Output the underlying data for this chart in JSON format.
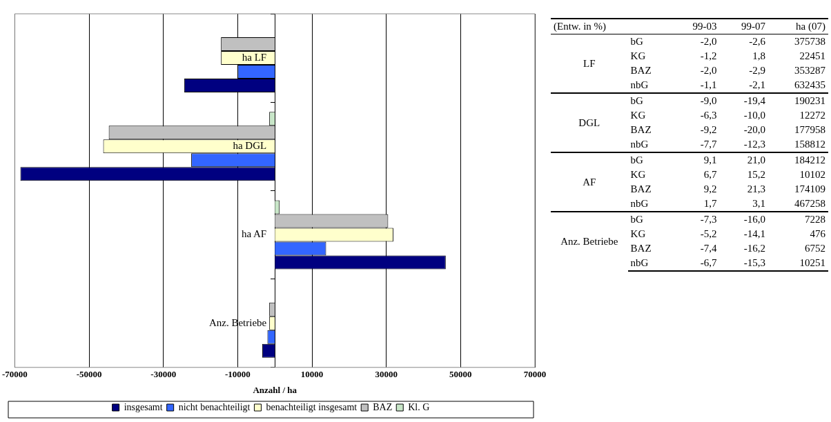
{
  "chart_data": [
    {
      "type": "bar",
      "orientation": "horizontal",
      "xlabel": "Anzahl / ha",
      "categories": [
        "ha LF",
        "ha DGL",
        "ha AF",
        "Anz. Betriebe"
      ],
      "series": [
        {
          "name": "insgesamt",
          "color": "#000080",
          "values": [
            -24400,
            -68500,
            46000,
            -3400
          ]
        },
        {
          "name": "nicht benachteiligt",
          "color": "#3366ff",
          "values": [
            -10000,
            -22500,
            13800,
            -2000
          ]
        },
        {
          "name": "benachteiligt insgesamt",
          "color": "#ffffcc",
          "values": [
            -14500,
            -46200,
            31900,
            -1500
          ]
        },
        {
          "name": "BAZ",
          "color": "#c0c0c0",
          "values": [
            -14500,
            -44700,
            30500,
            -1500
          ]
        },
        {
          "name": "Kl. G",
          "color": "#c8e6c8",
          "values": [
            null,
            -1500,
            1300,
            null
          ]
        }
      ],
      "xlim": [
        -70000,
        70000
      ],
      "xticks": [
        -70000,
        -50000,
        -30000,
        -10000,
        10000,
        30000,
        50000,
        70000
      ],
      "grid": "x",
      "legend": "bottom"
    },
    {
      "type": "heatmap",
      "categories": [
        "99-03",
        "99-07",
        "ha (07)"
      ],
      "y_categories": [
        "bG",
        "KG",
        "BAZ",
        "nbG",
        "bG",
        "KG",
        "BAZ",
        "nbG",
        "bG",
        "KG",
        "BAZ",
        "nbG",
        "bG",
        "KG",
        "BAZ",
        "nbG"
      ],
      "cells": [
        [
          -2.0,
          -2.6,
          375738
        ],
        [
          -1.2,
          1.8,
          22451
        ],
        [
          -2.0,
          -2.9,
          353287
        ],
        [
          -1.1,
          -2.1,
          632435
        ],
        [
          -9.0,
          -19.4,
          190231
        ],
        [
          -6.3,
          -10.0,
          12272
        ],
        [
          -9.2,
          -20.0,
          177958
        ],
        [
          -7.7,
          -12.3,
          158812
        ],
        [
          9.1,
          21.0,
          184212
        ],
        [
          6.7,
          15.2,
          10102
        ],
        [
          9.2,
          21.3,
          174109
        ],
        [
          1.7,
          3.1,
          467258
        ],
        [
          -7.3,
          -16.0,
          7228
        ],
        [
          -5.2,
          -14.1,
          476
        ],
        [
          -7.4,
          -16.2,
          6752
        ],
        [
          -6.7,
          -15.3,
          10251
        ]
      ],
      "cell_labels": [
        [
          "-2,0",
          "-2,6",
          "375738"
        ],
        [
          "-1,2",
          "1,8",
          "22451"
        ],
        [
          "-2,0",
          "-2,9",
          "353287"
        ],
        [
          "-1,1",
          "-2,1",
          "632435"
        ],
        [
          "-9,0",
          "-19,4",
          "190231"
        ],
        [
          "-6,3",
          "-10,0",
          "12272"
        ],
        [
          "-9,2",
          "-20,0",
          "177958"
        ],
        [
          "-7,7",
          "-12,3",
          "158812"
        ],
        [
          "9,1",
          "21,0",
          "184212"
        ],
        [
          "6,7",
          "15,2",
          "10102"
        ],
        [
          "9,2",
          "21,3",
          "174109"
        ],
        [
          "1,7",
          "3,1",
          "467258"
        ],
        [
          "-7,3",
          "-16,0",
          "7228"
        ],
        [
          "-5,2",
          "-14,1",
          "476"
        ],
        [
          "-7,4",
          "-16,2",
          "6752"
        ],
        [
          "-6,7",
          "-15,3",
          "10251"
        ]
      ],
      "annotations": [
        "(Entw. in %)",
        "LF",
        "DGL",
        "AF",
        "Anz. Betriebe"
      ]
    }
  ]
}
